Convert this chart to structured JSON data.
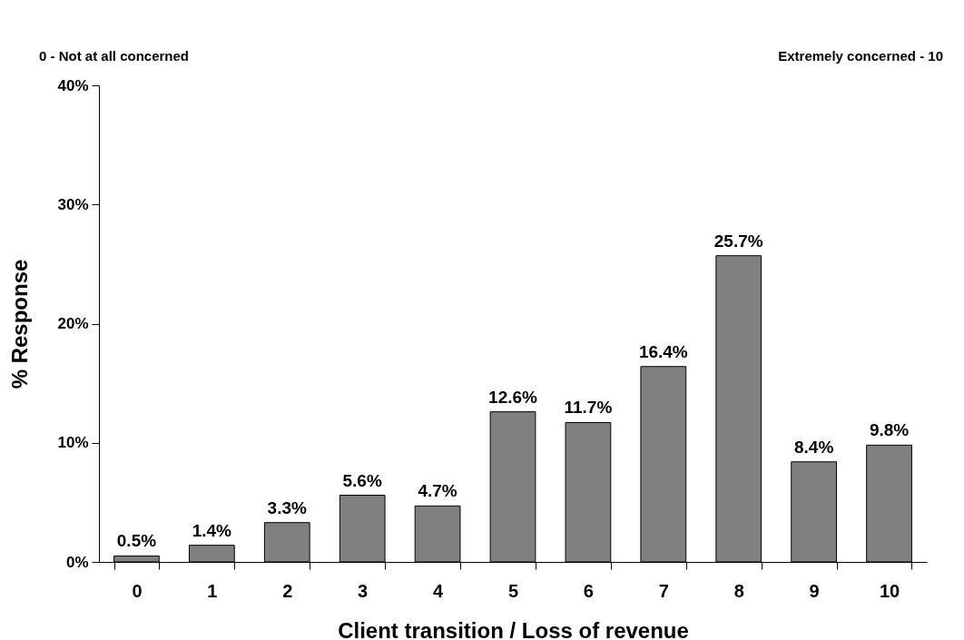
{
  "chart_data": {
    "type": "bar",
    "xlabel": "Client transition / Loss of revenue",
    "ylabel": "% Response",
    "categories": [
      "0",
      "1",
      "2",
      "3",
      "4",
      "5",
      "6",
      "7",
      "8",
      "9",
      "10"
    ],
    "values": [
      0.5,
      1.4,
      3.3,
      5.6,
      4.7,
      12.6,
      11.7,
      16.4,
      25.7,
      8.4,
      9.8
    ],
    "value_labels": [
      "0.5%",
      "1.4%",
      "3.3%",
      "5.6%",
      "4.7%",
      "12.6%",
      "11.7%",
      "16.4%",
      "25.7%",
      "8.4%",
      "9.8%"
    ],
    "color": "#808080",
    "ylim": [
      0,
      40
    ],
    "yticks": [
      {
        "value": 0,
        "label": "0%"
      },
      {
        "value": 10,
        "label": "10%"
      },
      {
        "value": 20,
        "label": "20%"
      },
      {
        "value": 30,
        "label": "30%"
      },
      {
        "value": 40,
        "label": "40%"
      }
    ],
    "grid": false,
    "annotations": [
      "0 - Not at all concerned",
      "Extremely concerned - 10"
    ]
  }
}
